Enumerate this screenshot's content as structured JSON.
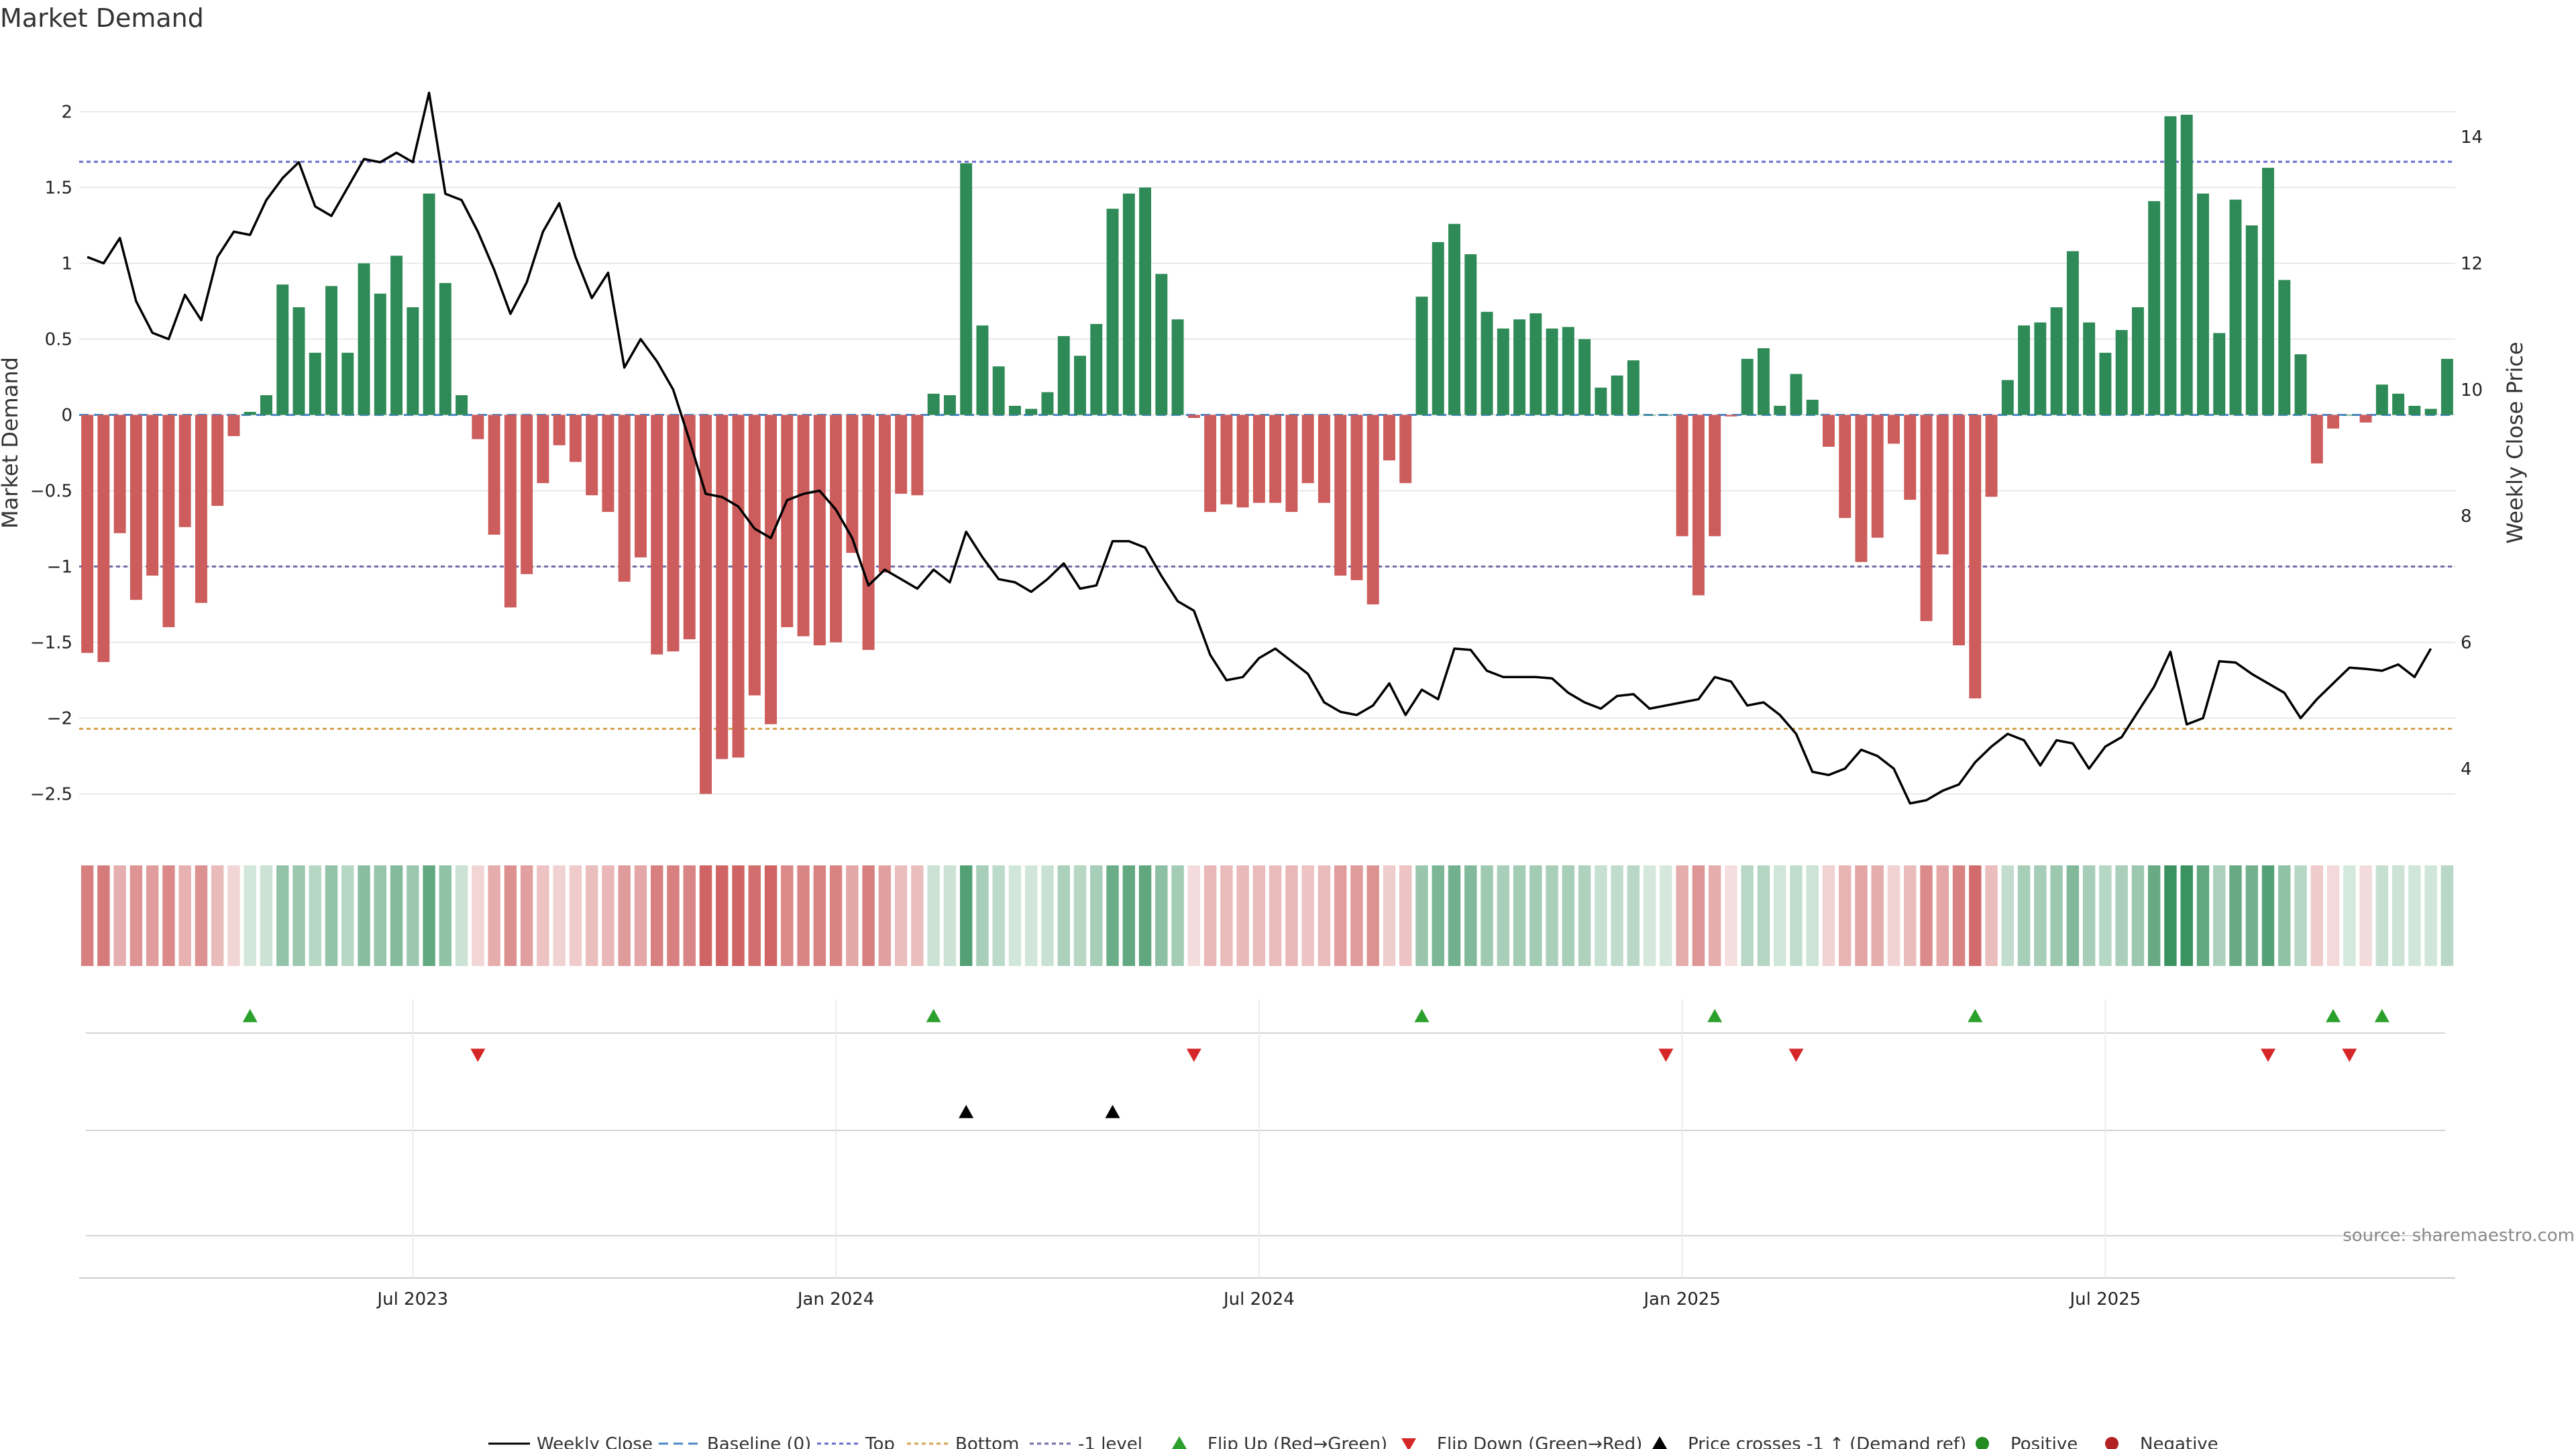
{
  "chart_data": {
    "type": "bar",
    "title": "Market Demand",
    "ylabel": "Market Demand",
    "y2label": "Weekly Close Price",
    "ylim": [
      -2.75,
      2.25
    ],
    "y2lim": [
      3,
      15
    ],
    "yticks": [
      -2.5,
      -2,
      -1.5,
      -1,
      -0.5,
      0,
      0.5,
      1,
      1.5,
      2
    ],
    "ytick_labels": [
      "−2.5",
      "−2",
      "−1.5",
      "−1",
      "−0.5",
      "0",
      "0.5",
      "1",
      "1.5",
      "2"
    ],
    "y2ticks": [
      4,
      6,
      8,
      10,
      12,
      14
    ],
    "y2tick_labels": [
      "4",
      "6",
      "8",
      "10",
      "12",
      "14"
    ],
    "xticks": [
      {
        "index": 20,
        "label": "Jul 2023"
      },
      {
        "index": 46,
        "label": "Jan 2024"
      },
      {
        "index": 72,
        "label": "Jul 2024"
      },
      {
        "index": 98,
        "label": "Jan 2025"
      },
      {
        "index": 124,
        "label": "Jul 2025"
      }
    ],
    "reference_lines": {
      "top": 1.67,
      "bottom": -2.07,
      "minus_one": -1.0,
      "baseline": 0
    },
    "colors": {
      "positive": "#2e8b57",
      "negative": "#cd5c5c",
      "price": "#000000",
      "top": "#6a6acd",
      "bottom": "#d4a050",
      "minus_one": "#6e6eaa",
      "baseline": "#4a86c8",
      "flip_up": "#2ca02c",
      "flip_down": "#d62728",
      "cross": "#000000",
      "pos_marker": "#228b22",
      "neg_marker": "#b22222"
    },
    "demand": [
      -1.57,
      -1.63,
      -0.78,
      -1.22,
      -1.06,
      -1.4,
      -0.74,
      -1.24,
      -0.6,
      -0.14,
      0.02,
      0.13,
      0.86,
      0.71,
      0.41,
      0.85,
      0.41,
      1.0,
      0.8,
      1.05,
      0.71,
      1.46,
      0.87,
      0.13,
      -0.16,
      -0.79,
      -1.27,
      -1.05,
      -0.45,
      -0.2,
      -0.31,
      -0.53,
      -0.64,
      -1.1,
      -0.94,
      -1.58,
      -1.56,
      -1.48,
      -2.5,
      -2.27,
      -2.26,
      -1.85,
      -2.04,
      -1.4,
      -1.46,
      -1.52,
      -1.5,
      -0.91,
      -1.55,
      -1.04,
      -0.52,
      -0.53,
      0.14,
      0.13,
      1.66,
      0.59,
      0.32,
      0.06,
      0.04,
      0.15,
      0.52,
      0.39,
      0.6,
      1.36,
      1.46,
      1.5,
      0.93,
      0.63,
      -0.02,
      -0.64,
      -0.59,
      -0.61,
      -0.58,
      -0.58,
      -0.64,
      -0.45,
      -0.58,
      -1.06,
      -1.09,
      -1.25,
      -0.3,
      -0.45,
      0.78,
      1.14,
      1.26,
      1.06,
      0.68,
      0.57,
      0.63,
      0.67,
      0.57,
      0.58,
      0.5,
      0.18,
      0.26,
      0.36,
      0.0,
      0.0,
      -0.8,
      -1.19,
      -0.8,
      -0.01,
      0.37,
      0.44,
      0.06,
      0.27,
      0.1,
      -0.21,
      -0.68,
      -0.97,
      -0.81,
      -0.19,
      -0.56,
      -1.36,
      -0.92,
      -1.52,
      -1.87,
      -0.54,
      0.23,
      0.59,
      0.61,
      0.71,
      1.08,
      0.61,
      0.41,
      0.56,
      0.71,
      1.41,
      1.97,
      1.98,
      1.46,
      0.54,
      1.42,
      1.25,
      1.63,
      0.89,
      0.4,
      -0.32,
      -0.09,
      0.0,
      -0.05,
      0.2,
      0.14,
      0.06,
      0.04,
      0.37
    ],
    "price": [
      12.1,
      12.0,
      12.4,
      11.4,
      10.9,
      10.8,
      11.5,
      11.1,
      12.1,
      12.5,
      12.45,
      13.0,
      13.35,
      13.6,
      12.9,
      12.75,
      13.2,
      13.65,
      13.6,
      13.75,
      13.6,
      14.7,
      13.1,
      13.0,
      12.5,
      11.9,
      11.2,
      11.7,
      12.5,
      12.95,
      12.1,
      11.45,
      11.85,
      10.35,
      10.8,
      10.45,
      10.0,
      9.2,
      8.35,
      8.3,
      8.15,
      7.8,
      7.65,
      8.25,
      8.35,
      8.4,
      8.1,
      7.65,
      6.9,
      7.15,
      7.0,
      6.85,
      7.15,
      6.95,
      7.75,
      7.35,
      7.0,
      6.95,
      6.8,
      7.0,
      7.25,
      6.85,
      6.9,
      7.6,
      7.6,
      7.5,
      7.05,
      6.65,
      6.5,
      5.8,
      5.4,
      5.45,
      5.75,
      5.9,
      5.7,
      5.5,
      5.05,
      4.9,
      4.85,
      5.0,
      5.35,
      4.85,
      5.25,
      5.1,
      5.9,
      5.88,
      5.55,
      5.45,
      5.45,
      5.45,
      5.43,
      5.2,
      5.05,
      4.95,
      5.15,
      5.18,
      4.95,
      5.0,
      5.05,
      5.1,
      5.45,
      5.38,
      5.0,
      5.05,
      4.85,
      4.55,
      3.95,
      3.9,
      4.0,
      4.3,
      4.2,
      4.0,
      3.45,
      3.5,
      3.65,
      3.75,
      4.1,
      4.35,
      4.55,
      4.45,
      4.05,
      4.45,
      4.4,
      4.0,
      4.35,
      4.5,
      4.9,
      5.3,
      5.85,
      4.7,
      4.8,
      5.7,
      5.68,
      5.5,
      5.35,
      5.2,
      4.8,
      5.1,
      5.35,
      5.6,
      5.58,
      5.55,
      5.65,
      5.45,
      5.9
    ],
    "flip_up_idx": [
      10,
      52,
      82,
      100,
      116,
      138,
      141
    ],
    "flip_down_idx": [
      24,
      68,
      97,
      105,
      134,
      139
    ],
    "cross_up_idx": [
      54,
      63
    ],
    "legend": [
      "Weekly Close",
      "Baseline (0)",
      "Top",
      "Bottom",
      "-1 level",
      "Flip Up (Red→Green)",
      "Flip Down (Green→Red)",
      "Price crosses -1 ↑ (Demand ref)",
      "Positive",
      "Negative"
    ],
    "source": "source: sharemaestro.com"
  }
}
